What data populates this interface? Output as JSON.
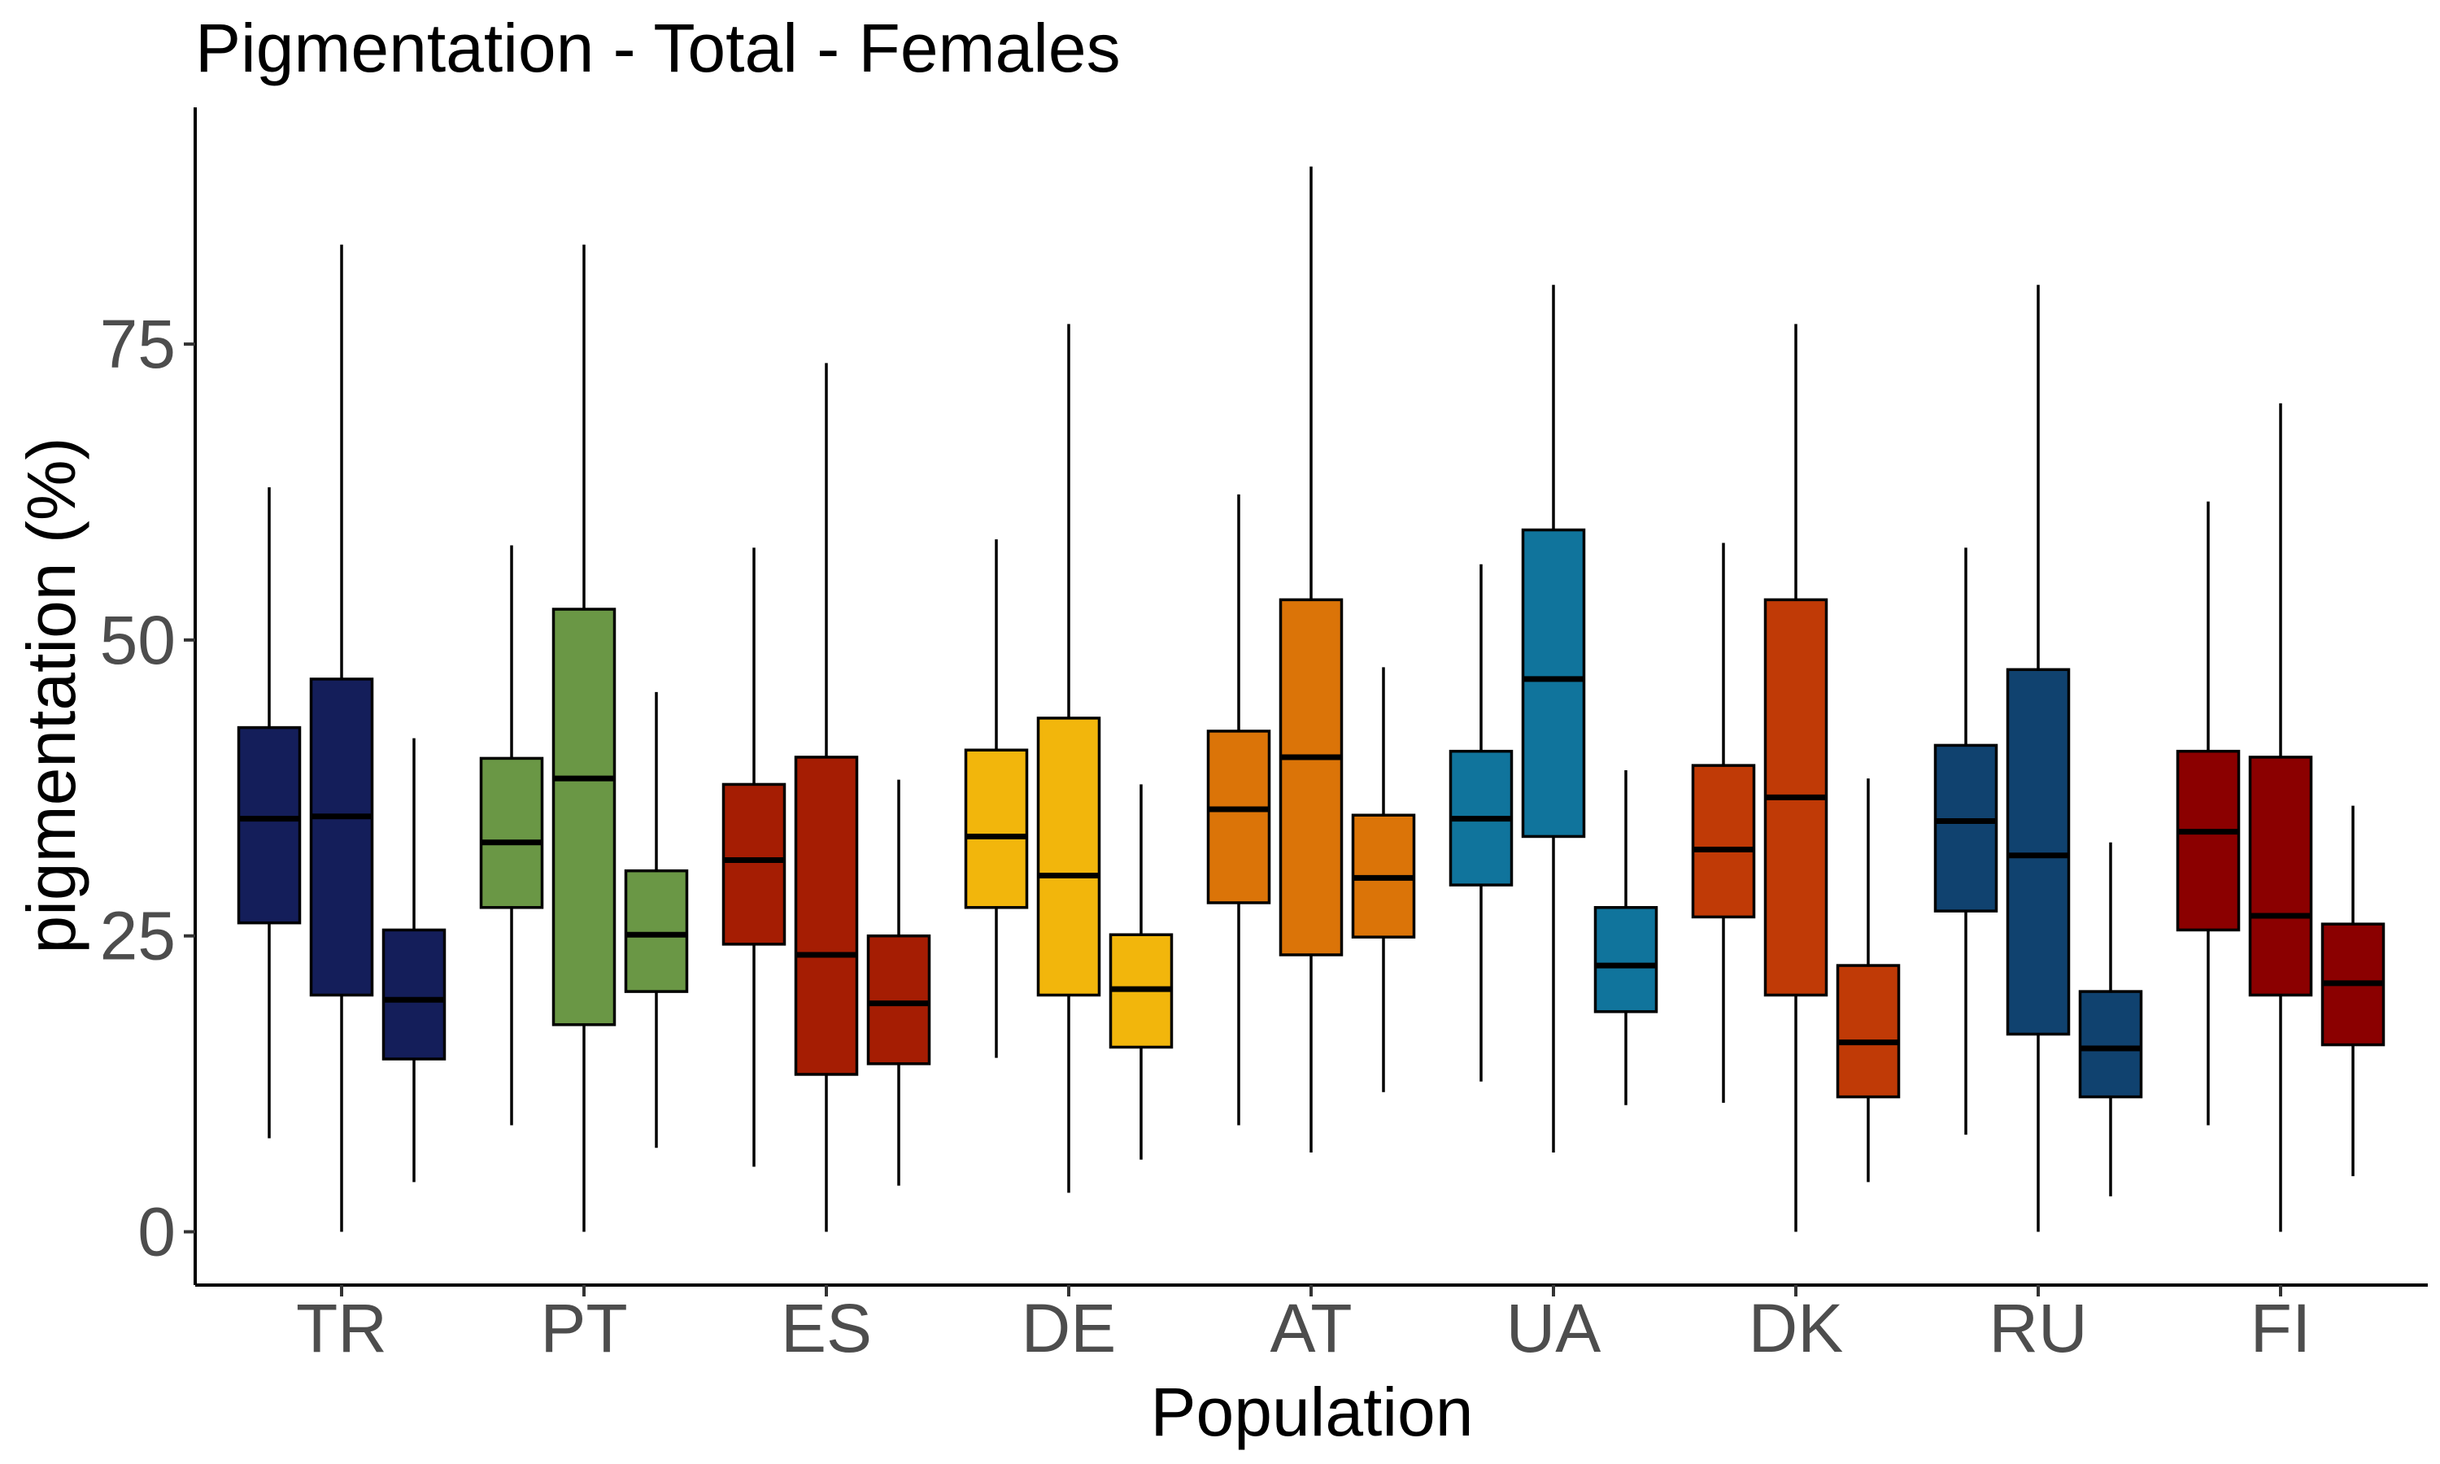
{
  "chart_data": {
    "type": "box",
    "title": "Pigmentation - Total - Females",
    "xlabel": "Population",
    "ylabel": "pigmentation (%)",
    "ylim": [
      -4.5,
      95
    ],
    "yticks": [
      0,
      25,
      50,
      75
    ],
    "grid": false,
    "legend": "none",
    "categories": [
      "TR",
      "PT",
      "ES",
      "DE",
      "AT",
      "UA",
      "DK",
      "RU",
      "FI"
    ],
    "groups": [
      {
        "category": "TR",
        "color": "#141e5a",
        "boxes": [
          {
            "whisker_low": 7.9,
            "q1": 26.1,
            "median": 34.9,
            "q3": 42.6,
            "whisker_high": 62.9
          },
          {
            "whisker_low": 0,
            "q1": 20.0,
            "median": 35.1,
            "q3": 46.7,
            "whisker_high": 83.4
          },
          {
            "whisker_low": 4.2,
            "q1": 14.6,
            "median": 19.6,
            "q3": 25.5,
            "whisker_high": 41.7
          }
        ]
      },
      {
        "category": "PT",
        "color": "#6a9745",
        "boxes": [
          {
            "whisker_low": 9.0,
            "q1": 27.4,
            "median": 32.9,
            "q3": 40.0,
            "whisker_high": 58.0
          },
          {
            "whisker_low": 0,
            "q1": 17.5,
            "median": 38.3,
            "q3": 52.6,
            "whisker_high": 83.4
          },
          {
            "whisker_low": 7.1,
            "q1": 20.3,
            "median": 25.1,
            "q3": 30.5,
            "whisker_high": 45.6
          }
        ]
      },
      {
        "category": "ES",
        "color": "#a51d03",
        "boxes": [
          {
            "whisker_low": 5.5,
            "q1": 24.3,
            "median": 31.4,
            "q3": 37.8,
            "whisker_high": 57.8
          },
          {
            "whisker_low": 0,
            "q1": 13.3,
            "median": 23.4,
            "q3": 40.1,
            "whisker_high": 73.4
          },
          {
            "whisker_low": 3.9,
            "q1": 14.2,
            "median": 19.3,
            "q3": 25.0,
            "whisker_high": 38.2
          }
        ]
      },
      {
        "category": "DE",
        "color": "#f2b60c",
        "boxes": [
          {
            "whisker_low": 14.7,
            "q1": 27.4,
            "median": 33.4,
            "q3": 40.7,
            "whisker_high": 58.5
          },
          {
            "whisker_low": 3.3,
            "q1": 20.0,
            "median": 30.1,
            "q3": 43.4,
            "whisker_high": 76.7
          },
          {
            "whisker_low": 6.1,
            "q1": 15.6,
            "median": 20.5,
            "q3": 25.1,
            "whisker_high": 37.8
          }
        ]
      },
      {
        "category": "AT",
        "color": "#db7408",
        "boxes": [
          {
            "whisker_low": 9.0,
            "q1": 27.8,
            "median": 35.7,
            "q3": 42.3,
            "whisker_high": 62.3
          },
          {
            "whisker_low": 6.7,
            "q1": 23.4,
            "median": 40.1,
            "q3": 53.4,
            "whisker_high": 90.0
          },
          {
            "whisker_low": 11.8,
            "q1": 24.9,
            "median": 29.9,
            "q3": 35.2,
            "whisker_high": 47.7
          }
        ]
      },
      {
        "category": "UA",
        "color": "#10749c",
        "boxes": [
          {
            "whisker_low": 12.7,
            "q1": 29.3,
            "median": 34.9,
            "q3": 40.6,
            "whisker_high": 56.4
          },
          {
            "whisker_low": 6.7,
            "q1": 33.4,
            "median": 46.7,
            "q3": 59.3,
            "whisker_high": 80.0
          },
          {
            "whisker_low": 10.7,
            "q1": 18.6,
            "median": 22.5,
            "q3": 27.4,
            "whisker_high": 39.0
          }
        ]
      },
      {
        "category": "DK",
        "color": "#c03a06",
        "boxes": [
          {
            "whisker_low": 10.9,
            "q1": 26.6,
            "median": 32.3,
            "q3": 39.4,
            "whisker_high": 58.2
          },
          {
            "whisker_low": 0,
            "q1": 20.0,
            "median": 36.7,
            "q3": 53.4,
            "whisker_high": 76.7
          },
          {
            "whisker_low": 4.2,
            "q1": 11.4,
            "median": 16.0,
            "q3": 22.5,
            "whisker_high": 38.3
          }
        ]
      },
      {
        "category": "RU",
        "color": "#10426f",
        "boxes": [
          {
            "whisker_low": 8.2,
            "q1": 27.1,
            "median": 34.7,
            "q3": 41.1,
            "whisker_high": 57.8
          },
          {
            "whisker_low": 0,
            "q1": 16.7,
            "median": 31.8,
            "q3": 47.5,
            "whisker_high": 80.0
          },
          {
            "whisker_low": 3.0,
            "q1": 11.4,
            "median": 15.5,
            "q3": 20.3,
            "whisker_high": 32.9
          }
        ]
      },
      {
        "category": "FI",
        "color": "#8b0000",
        "boxes": [
          {
            "whisker_low": 9.0,
            "q1": 25.5,
            "median": 33.8,
            "q3": 40.6,
            "whisker_high": 61.7
          },
          {
            "whisker_low": 0,
            "q1": 20.0,
            "median": 26.7,
            "q3": 40.1,
            "whisker_high": 70.0
          },
          {
            "whisker_low": 4.7,
            "q1": 15.8,
            "median": 21.0,
            "q3": 26.0,
            "whisker_high": 36.0
          }
        ]
      }
    ]
  }
}
